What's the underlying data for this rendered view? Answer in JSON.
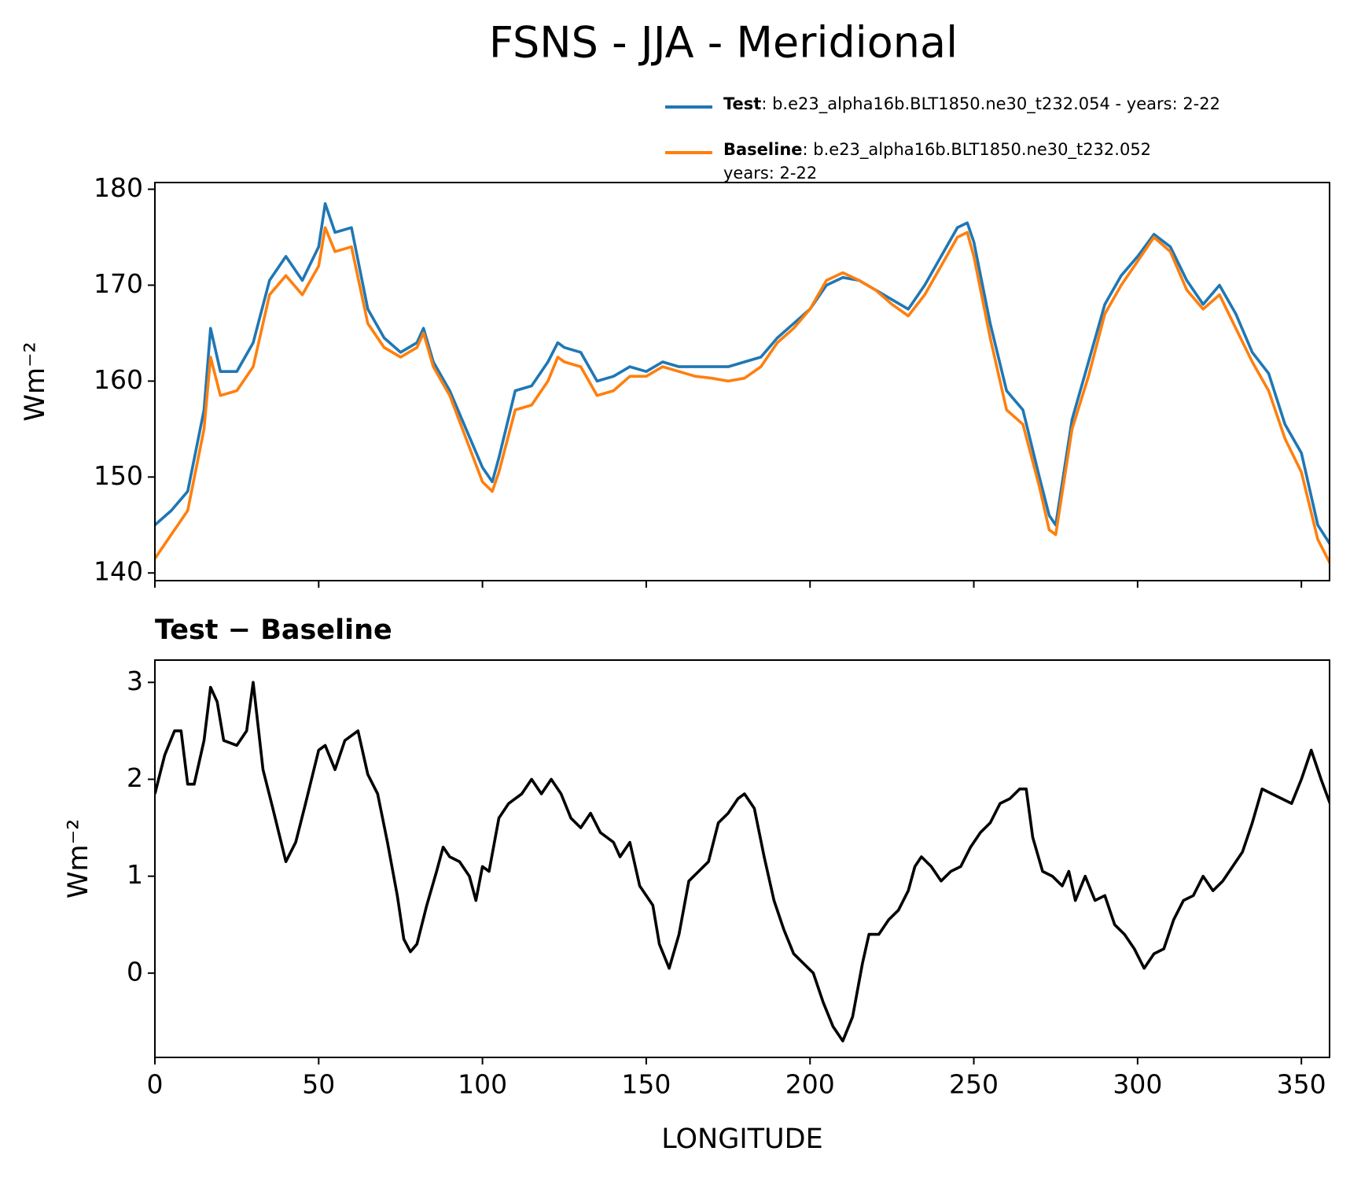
{
  "chart_data": [
    {
      "type": "line",
      "title": "FSNS - JJA - Meridional",
      "y_label": "Wm⁻²",
      "x": [
        0,
        5,
        10,
        15,
        17,
        20,
        25,
        30,
        35,
        40,
        45,
        50,
        52,
        55,
        60,
        65,
        70,
        75,
        80,
        82,
        85,
        90,
        95,
        100,
        103,
        105,
        110,
        115,
        120,
        123,
        125,
        130,
        135,
        140,
        145,
        150,
        155,
        160,
        165,
        170,
        175,
        180,
        185,
        190,
        195,
        200,
        205,
        210,
        215,
        220,
        225,
        230,
        235,
        240,
        245,
        248,
        250,
        255,
        260,
        265,
        270,
        273,
        275,
        280,
        285,
        290,
        295,
        300,
        305,
        310,
        315,
        320,
        325,
        330,
        335,
        340,
        345,
        350,
        355,
        358.75
      ],
      "series": [
        {
          "name": "Test",
          "description": [
            ": b.e23_alpha16b.BLT1850.ne30_t232.054 - years: 2-22"
          ],
          "color": "#1f77b4",
          "values": [
            145,
            146.5,
            148.5,
            157,
            165.5,
            161,
            161,
            164,
            170.5,
            173,
            170.5,
            174,
            178.5,
            175.5,
            176,
            167.5,
            164.5,
            163,
            164,
            165.5,
            162,
            159,
            155,
            151,
            149.5,
            152,
            159,
            159.5,
            162,
            164,
            163.5,
            163,
            160,
            160.5,
            161.5,
            161,
            162,
            161.5,
            161.5,
            161.5,
            161.5,
            162,
            162.5,
            164.5,
            166,
            167.5,
            170,
            170.8,
            170.5,
            169.5,
            168.5,
            167.5,
            170,
            173,
            176,
            176.5,
            174.5,
            166,
            159,
            157,
            150,
            146,
            145,
            156,
            162,
            168,
            171,
            173,
            175.3,
            174,
            170.5,
            168,
            170,
            167,
            163,
            160.8,
            155.5,
            152.5,
            145,
            143
          ]
        },
        {
          "name": "Baseline",
          "description": [
            ": b.e23_alpha16b.BLT1850.ne30_t232.052",
            "years: 2-22"
          ],
          "color": "#ff7f0e",
          "values": [
            141.5,
            144,
            146.5,
            155,
            162.5,
            158.5,
            159,
            161.5,
            169,
            171,
            169,
            172,
            176,
            173.5,
            174,
            166,
            163.5,
            162.5,
            163.5,
            165,
            161.5,
            158.5,
            154,
            149.5,
            148.5,
            150.5,
            157,
            157.5,
            160,
            162.5,
            162,
            161.5,
            158.5,
            159,
            160.5,
            160.5,
            161.5,
            161,
            160.5,
            160.3,
            160,
            160.3,
            161.5,
            164,
            165.5,
            167.5,
            170.5,
            171.3,
            170.5,
            169.5,
            168,
            166.8,
            169,
            172,
            175,
            175.5,
            173,
            164.5,
            157,
            155.5,
            149,
            144.5,
            144,
            155,
            160.5,
            167,
            170,
            172.5,
            175,
            173.5,
            169.5,
            167.5,
            169,
            165.5,
            162,
            159,
            154,
            150.5,
            143.5,
            141
          ]
        }
      ],
      "xlim": [
        0,
        358.6
      ],
      "xticks": [
        0,
        50,
        100,
        150,
        200,
        250,
        300,
        350
      ],
      "show_xtick_labels": false,
      "ylim": [
        139.2,
        180.7
      ],
      "yticks": [
        140,
        150,
        160,
        170,
        180
      ]
    },
    {
      "type": "line",
      "title": "Test − Baseline",
      "y_label": "Wm⁻²",
      "x_label": "LONGITUDE",
      "x": [
        0,
        3,
        6,
        8,
        10,
        12,
        15,
        17,
        19,
        21,
        25,
        28,
        30,
        33,
        36,
        40,
        43,
        46,
        50,
        52,
        55,
        58,
        62,
        65,
        68,
        71,
        74,
        76,
        78,
        80,
        83,
        86,
        88,
        90,
        93,
        96,
        98,
        100,
        102,
        105,
        108,
        112,
        115,
        118,
        121,
        124,
        127,
        130,
        133,
        136,
        140,
        142,
        145,
        148,
        152,
        154,
        157,
        160,
        163,
        166,
        169,
        172,
        175,
        178,
        180,
        183,
        186,
        189,
        192,
        195,
        198,
        201,
        204,
        207,
        210,
        213,
        216,
        218,
        221,
        224,
        227,
        230,
        232,
        234,
        237,
        240,
        243,
        246,
        249,
        252,
        255,
        258,
        261,
        264,
        266,
        268,
        271,
        274,
        277,
        279,
        281,
        284,
        287,
        290,
        293,
        296,
        299,
        302,
        305,
        308,
        311,
        314,
        317,
        320,
        323,
        326,
        329,
        332,
        335,
        338,
        341,
        344,
        347,
        350,
        353,
        356,
        358.75
      ],
      "series": [
        {
          "color": "#000000",
          "values": [
            1.85,
            2.25,
            2.5,
            2.5,
            1.95,
            1.95,
            2.4,
            2.95,
            2.8,
            2.4,
            2.35,
            2.5,
            3.0,
            2.1,
            1.7,
            1.15,
            1.35,
            1.75,
            2.3,
            2.35,
            2.1,
            2.4,
            2.5,
            2.05,
            1.85,
            1.35,
            0.8,
            0.35,
            0.22,
            0.3,
            0.7,
            1.05,
            1.3,
            1.2,
            1.15,
            1.0,
            0.75,
            1.1,
            1.05,
            1.6,
            1.75,
            1.85,
            2.0,
            1.85,
            2.0,
            1.85,
            1.6,
            1.5,
            1.65,
            1.45,
            1.35,
            1.2,
            1.35,
            0.9,
            0.7,
            0.3,
            0.05,
            0.4,
            0.95,
            1.05,
            1.15,
            1.55,
            1.65,
            1.8,
            1.85,
            1.7,
            1.2,
            0.75,
            0.45,
            0.2,
            0.1,
            0.0,
            -0.3,
            -0.55,
            -0.7,
            -0.45,
            0.1,
            0.4,
            0.4,
            0.55,
            0.65,
            0.85,
            1.1,
            1.2,
            1.1,
            0.95,
            1.05,
            1.1,
            1.3,
            1.45,
            1.55,
            1.75,
            1.8,
            1.9,
            1.9,
            1.4,
            1.05,
            1.0,
            0.9,
            1.05,
            0.75,
            1.0,
            0.75,
            0.8,
            0.5,
            0.4,
            0.25,
            0.05,
            0.2,
            0.25,
            0.55,
            0.75,
            0.8,
            1.0,
            0.85,
            0.95,
            1.1,
            1.25,
            1.55,
            1.9,
            1.85,
            1.8,
            1.75,
            2.0,
            2.3,
            2.0,
            1.75
          ]
        }
      ],
      "xlim": [
        0,
        358.6
      ],
      "xticks": [
        0,
        50,
        100,
        150,
        200,
        250,
        300,
        350
      ],
      "show_xtick_labels": true,
      "ylim": [
        -0.87,
        3.23
      ],
      "yticks": [
        0,
        1,
        2,
        3
      ]
    }
  ]
}
